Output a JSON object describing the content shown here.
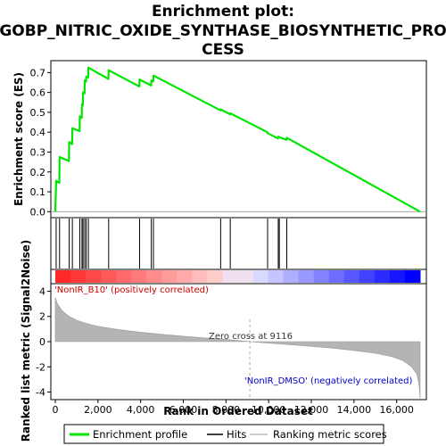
{
  "chart_data": {
    "type": "line",
    "title_lines": [
      "Enrichment plot:",
      "GOBP_NITRIC_OXIDE_SYNTHASE_BIOSYNTHETIC_PRO",
      "CESS"
    ],
    "ylabel_top": "Enrichment score (ES)",
    "ylabel_bottom": "Ranked list metric (Signal2Noise)",
    "xlabel": "Rank in Ordered Dataset",
    "n_genes": 17100,
    "x_ticks": [
      0,
      2000,
      4000,
      6000,
      8000,
      10000,
      12000,
      14000,
      16000
    ],
    "x_tick_labels": [
      "0",
      "2,000",
      "4,000",
      "6,000",
      "8,000",
      "10,000",
      "12,000",
      "14,000",
      "16,000"
    ],
    "es_ylim": [
      -0.03,
      0.76
    ],
    "es_ticks": [
      0.0,
      0.1,
      0.2,
      0.3,
      0.4,
      0.5,
      0.6,
      0.7
    ],
    "es_tick_labels": [
      "0.0",
      "0.1",
      "0.2",
      "0.3",
      "0.4",
      "0.5",
      "0.6",
      "0.7"
    ],
    "metric_ylim": [
      -4.6,
      4.6
    ],
    "metric_ticks": [
      -4,
      -2,
      0,
      2,
      4
    ],
    "metric_tick_labels": [
      "-4",
      "-2",
      "0",
      "2",
      "4"
    ],
    "hits": [
      40,
      200,
      650,
      800,
      1150,
      1250,
      1300,
      1380,
      1450,
      1550,
      2500,
      3950,
      4500,
      4600,
      7750,
      8200,
      9950,
      10450,
      10500,
      10850
    ],
    "es_points": [
      [
        0,
        0.0
      ],
      [
        40,
        0.155
      ],
      [
        190,
        0.145
      ],
      [
        200,
        0.275
      ],
      [
        640,
        0.255
      ],
      [
        650,
        0.35
      ],
      [
        790,
        0.34
      ],
      [
        800,
        0.42
      ],
      [
        1140,
        0.405
      ],
      [
        1150,
        0.48
      ],
      [
        1240,
        0.472
      ],
      [
        1250,
        0.54
      ],
      [
        1290,
        0.535
      ],
      [
        1300,
        0.6
      ],
      [
        1370,
        0.595
      ],
      [
        1380,
        0.66
      ],
      [
        1440,
        0.655
      ],
      [
        1450,
        0.68
      ],
      [
        1540,
        0.675
      ],
      [
        1550,
        0.725
      ],
      [
        2490,
        0.668
      ],
      [
        2500,
        0.712
      ],
      [
        3940,
        0.63
      ],
      [
        3950,
        0.665
      ],
      [
        4490,
        0.635
      ],
      [
        4500,
        0.66
      ],
      [
        4590,
        0.655
      ],
      [
        4600,
        0.685
      ],
      [
        7740,
        0.51
      ],
      [
        7750,
        0.515
      ],
      [
        8190,
        0.49
      ],
      [
        8200,
        0.495
      ],
      [
        9940,
        0.4
      ],
      [
        9950,
        0.395
      ],
      [
        10440,
        0.368
      ],
      [
        10450,
        0.378
      ],
      [
        10490,
        0.376
      ],
      [
        10500,
        0.375
      ],
      [
        10840,
        0.362
      ],
      [
        10850,
        0.372
      ],
      [
        17100,
        0.0
      ]
    ],
    "metric_curve": [
      [
        0,
        3.5
      ],
      [
        100,
        3.0
      ],
      [
        300,
        2.5
      ],
      [
        600,
        2.05
      ],
      [
        1000,
        1.7
      ],
      [
        1500,
        1.42
      ],
      [
        2000,
        1.22
      ],
      [
        3000,
        0.95
      ],
      [
        4000,
        0.75
      ],
      [
        5000,
        0.58
      ],
      [
        6000,
        0.43
      ],
      [
        7000,
        0.3
      ],
      [
        8000,
        0.18
      ],
      [
        9116,
        0.0
      ],
      [
        10000,
        -0.12
      ],
      [
        11000,
        -0.24
      ],
      [
        12000,
        -0.38
      ],
      [
        13000,
        -0.52
      ],
      [
        14000,
        -0.7
      ],
      [
        15000,
        -0.92
      ],
      [
        15800,
        -1.2
      ],
      [
        16300,
        -1.5
      ],
      [
        16700,
        -2.0
      ],
      [
        16950,
        -2.6
      ],
      [
        17050,
        -3.4
      ],
      [
        17100,
        -4.5
      ]
    ],
    "zero_cross_rank": 9116,
    "zero_cross_label": "Zero cross at 9116",
    "pos_label": "'NonIR_B10' (positively correlated)",
    "neg_label": "'NonIR_DMSO' (negatively correlated)",
    "legend": {
      "enrichment_label": "Enrichment profile",
      "hits_label": "Hits",
      "ranking_label": "Ranking metric scores"
    },
    "colors": {
      "es_line": "#00e600",
      "hits": "#000000",
      "metric_fill": "#b4b4b4",
      "zero_line": "#aaaaaa",
      "pos": "#ff0000",
      "neg": "#0000ff"
    }
  }
}
